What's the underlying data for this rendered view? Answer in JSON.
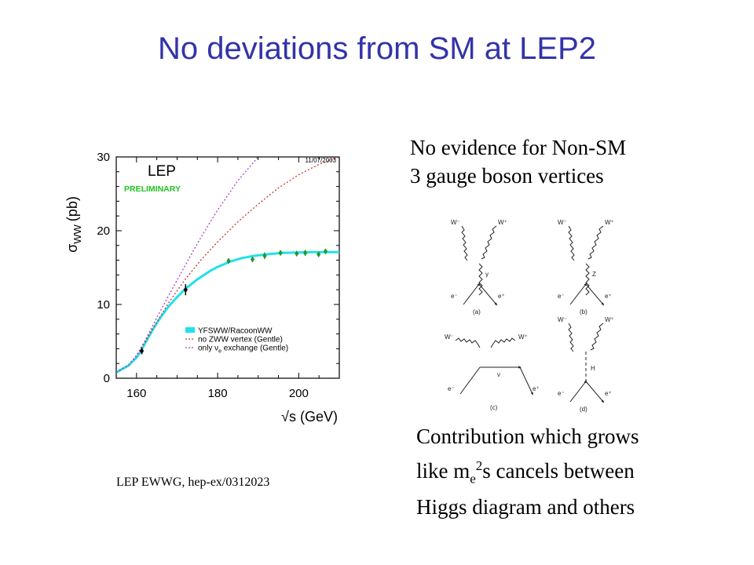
{
  "slide": {
    "title": "No deviations from SM at LEP2",
    "note_top": [
      "No evidence for Non-SM",
      "3 gauge boson vertices"
    ],
    "note_bottom": {
      "line1": "Contribution which grows",
      "line2_pre": "like m",
      "line2_sub": "e",
      "line2_sup": "2",
      "line2_post": "s cancels between",
      "line3": "Higgs diagram and others"
    },
    "citation": "LEP EWWG, hep-ex/0312023"
  },
  "chart_data": {
    "type": "line",
    "date_label": "11/07/2003",
    "experiment_label": "LEP",
    "status_label": "PRELIMINARY",
    "xlabel": "√s (GeV)",
    "ylabel_main": "σ",
    "ylabel_sub": "WW",
    "ylabel_unit": "(pb)",
    "xlim": [
      155,
      210
    ],
    "ylim": [
      0,
      30
    ],
    "xticks": [
      160,
      180,
      200
    ],
    "yticks": [
      0,
      10,
      20,
      30
    ],
    "legend_position": "bottom-right",
    "legend": [
      {
        "label": "YFSWW/RacoonWW",
        "style": "band",
        "color": "#22e0ea"
      },
      {
        "label": "no ZWW vertex (Gentle)",
        "style": "dotted",
        "color": "#c0392b"
      },
      {
        "label_pre": "only ν",
        "label_sub": "e",
        "label_post": " exchange (Gentle)",
        "style": "dotted",
        "color": "#b040c8"
      }
    ],
    "series": [
      {
        "style": "band",
        "color": "#22e0ea",
        "x": [
          155,
          158,
          160,
          161,
          162,
          164,
          166,
          168,
          170,
          172,
          175,
          178,
          180,
          183,
          186,
          189,
          192,
          196,
          200,
          204,
          208,
          210
        ],
        "y": [
          0.8,
          1.7,
          2.8,
          3.6,
          4.6,
          6.6,
          8.3,
          9.8,
          11.0,
          12.1,
          13.4,
          14.5,
          15.1,
          15.8,
          16.3,
          16.6,
          16.8,
          17.0,
          17.05,
          17.1,
          17.1,
          17.1
        ]
      },
      {
        "style": "dotted",
        "color": "#c0392b",
        "x": [
          155,
          158,
          160,
          162,
          165,
          168,
          172,
          176,
          180,
          185,
          190,
          195,
          200,
          205,
          210
        ],
        "y": [
          0.8,
          1.8,
          3.0,
          4.8,
          7.6,
          10.3,
          13.4,
          16.1,
          18.5,
          21.2,
          23.6,
          25.8,
          27.6,
          29.0,
          30.0
        ]
      },
      {
        "style": "dotted",
        "color": "#b040c8",
        "x": [
          155,
          158,
          160,
          162,
          165,
          168,
          172,
          176,
          180,
          185,
          190
        ],
        "y": [
          0.8,
          1.8,
          3.1,
          5.0,
          8.2,
          11.3,
          15.3,
          19.2,
          22.8,
          26.8,
          30.0
        ]
      }
    ],
    "points": [
      {
        "x": 161.3,
        "y": 3.7,
        "err": 0.45,
        "color": "#000000"
      },
      {
        "x": 172.1,
        "y": 12.0,
        "err": 0.75,
        "color": "#000000"
      },
      {
        "x": 182.7,
        "y": 15.9,
        "err": 0.35,
        "color": "#1f9a2e"
      },
      {
        "x": 188.6,
        "y": 16.1,
        "err": 0.25,
        "color": "#1f9a2e"
      },
      {
        "x": 191.6,
        "y": 16.6,
        "err": 0.45,
        "color": "#1f9a2e"
      },
      {
        "x": 195.5,
        "y": 17.0,
        "err": 0.3,
        "color": "#1f9a2e"
      },
      {
        "x": 199.5,
        "y": 16.9,
        "err": 0.3,
        "color": "#1f9a2e"
      },
      {
        "x": 201.6,
        "y": 17.0,
        "err": 0.4,
        "color": "#1f9a2e"
      },
      {
        "x": 204.9,
        "y": 16.8,
        "err": 0.3,
        "color": "#1f9a2e"
      },
      {
        "x": 206.6,
        "y": 17.2,
        "err": 0.25,
        "color": "#1f9a2e"
      }
    ]
  },
  "diagrams": {
    "particles": {
      "w_minus": "W⁻",
      "w_plus": "W⁺",
      "e_minus": "e⁻",
      "e_plus": "e⁺",
      "gamma": "γ",
      "z": "Z",
      "nu": "ν",
      "higgs": "H"
    },
    "captions": [
      "(a)",
      "(b)",
      "(c)",
      "(d)"
    ]
  }
}
